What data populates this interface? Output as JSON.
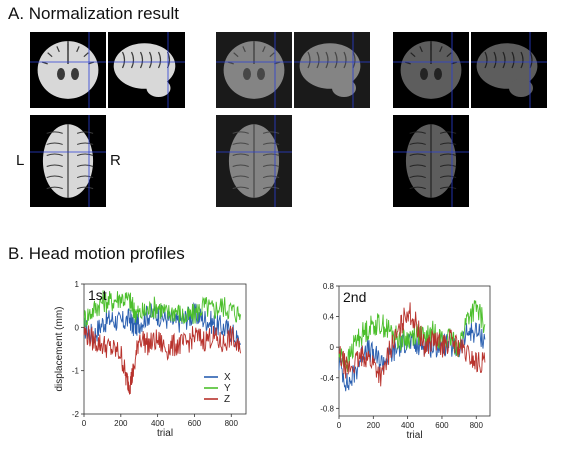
{
  "figure": {
    "panel_a_title": "A. Normalization result",
    "panel_b_title": "B. Head motion profiles",
    "left_marker": "L",
    "right_marker": "R",
    "brain_panels": [
      {
        "name": "t1-coronal",
        "kind": "coronal",
        "style": "t1"
      },
      {
        "name": "t1-sagittal",
        "kind": "sagittal",
        "style": "t1"
      },
      {
        "name": "t1-axial",
        "kind": "axial",
        "style": "t1"
      },
      {
        "name": "run1-coronal",
        "kind": "coronal",
        "style": "epi1"
      },
      {
        "name": "run1-sagittal",
        "kind": "sagittal",
        "style": "epi1"
      },
      {
        "name": "run1-axial",
        "kind": "axial",
        "style": "epi1"
      },
      {
        "name": "run2-coronal",
        "kind": "coronal",
        "style": "epi2"
      },
      {
        "name": "run2-sagittal",
        "kind": "sagittal",
        "style": "epi2"
      },
      {
        "name": "run2-axial",
        "kind": "axial",
        "style": "epi2"
      }
    ]
  },
  "chart_data": [
    {
      "type": "line",
      "label": "1st",
      "xlabel": "trial",
      "ylabel": "displacement (mm)",
      "xlim": [
        0,
        880
      ],
      "ylim": [
        -2,
        1
      ],
      "xticks": [
        0,
        200,
        400,
        600,
        800
      ],
      "yticks": [
        -2,
        -1,
        0,
        1
      ],
      "legend_position": "bottom-right",
      "series": [
        {
          "name": "X",
          "color": "#2a5fb0",
          "x": [
            0,
            50,
            100,
            150,
            200,
            250,
            270,
            300,
            350,
            400,
            450,
            500,
            550,
            600,
            650,
            700,
            750,
            800,
            850
          ],
          "values": [
            0.0,
            -0.2,
            0.1,
            0.2,
            0.1,
            0.2,
            0.0,
            0.1,
            0.3,
            0.3,
            0.2,
            0.1,
            0.2,
            0.3,
            0.2,
            0.1,
            0.0,
            -0.1,
            -0.4
          ]
        },
        {
          "name": "Y",
          "color": "#4cbf2c",
          "x": [
            0,
            50,
            100,
            150,
            200,
            250,
            270,
            300,
            350,
            400,
            450,
            500,
            550,
            600,
            650,
            700,
            750,
            800,
            850
          ],
          "values": [
            0.2,
            0.4,
            0.6,
            0.6,
            0.7,
            0.6,
            0.4,
            0.3,
            0.4,
            0.5,
            0.3,
            0.4,
            0.2,
            0.3,
            0.5,
            0.4,
            0.5,
            0.4,
            0.3
          ]
        },
        {
          "name": "Z",
          "color": "#b8322c",
          "x": [
            0,
            50,
            100,
            150,
            200,
            230,
            250,
            270,
            300,
            350,
            400,
            450,
            500,
            550,
            600,
            650,
            700,
            750,
            800,
            850
          ],
          "values": [
            -0.1,
            -0.3,
            -0.4,
            -0.5,
            -0.6,
            -1.2,
            -1.3,
            -1.0,
            -0.2,
            -0.4,
            -0.3,
            -0.5,
            -0.4,
            -0.4,
            -0.2,
            -0.3,
            -0.2,
            -0.4,
            -0.2,
            -0.6
          ]
        }
      ]
    },
    {
      "type": "line",
      "label": "2nd",
      "xlabel": "trial",
      "ylabel": "",
      "xlim": [
        0,
        880
      ],
      "ylim": [
        -0.9,
        0.8
      ],
      "xticks": [
        0,
        200,
        400,
        600,
        800
      ],
      "yticks": [
        -0.8,
        -0.4,
        0,
        0.4,
        0.8
      ],
      "series": [
        {
          "name": "X",
          "color": "#2a5fb0",
          "x": [
            0,
            50,
            100,
            150,
            200,
            250,
            300,
            350,
            400,
            450,
            500,
            550,
            600,
            650,
            700,
            750,
            800,
            850
          ],
          "values": [
            -0.2,
            -0.5,
            -0.3,
            0.0,
            -0.1,
            -0.2,
            -0.1,
            0.0,
            0.1,
            0.0,
            0.05,
            0.0,
            0.05,
            0.0,
            -0.05,
            0.2,
            0.2,
            0.1
          ]
        },
        {
          "name": "Y",
          "color": "#4cbf2c",
          "x": [
            0,
            50,
            100,
            150,
            200,
            250,
            300,
            350,
            400,
            450,
            500,
            550,
            600,
            650,
            700,
            750,
            800,
            850
          ],
          "values": [
            -0.1,
            -0.2,
            0.1,
            0.2,
            0.3,
            0.3,
            0.2,
            0.1,
            0.1,
            0.2,
            0.1,
            0.2,
            0.1,
            0.1,
            0.0,
            0.4,
            0.5,
            0.3
          ]
        },
        {
          "name": "Z",
          "color": "#b8322c",
          "x": [
            0,
            50,
            100,
            150,
            200,
            250,
            300,
            350,
            400,
            450,
            500,
            550,
            600,
            650,
            700,
            750,
            800,
            850
          ],
          "values": [
            -0.1,
            -0.3,
            -0.2,
            -0.1,
            -0.2,
            -0.4,
            0.0,
            0.2,
            0.5,
            0.3,
            0.0,
            0.1,
            0.0,
            0.1,
            0.0,
            -0.1,
            -0.2,
            -0.2
          ]
        }
      ]
    }
  ]
}
